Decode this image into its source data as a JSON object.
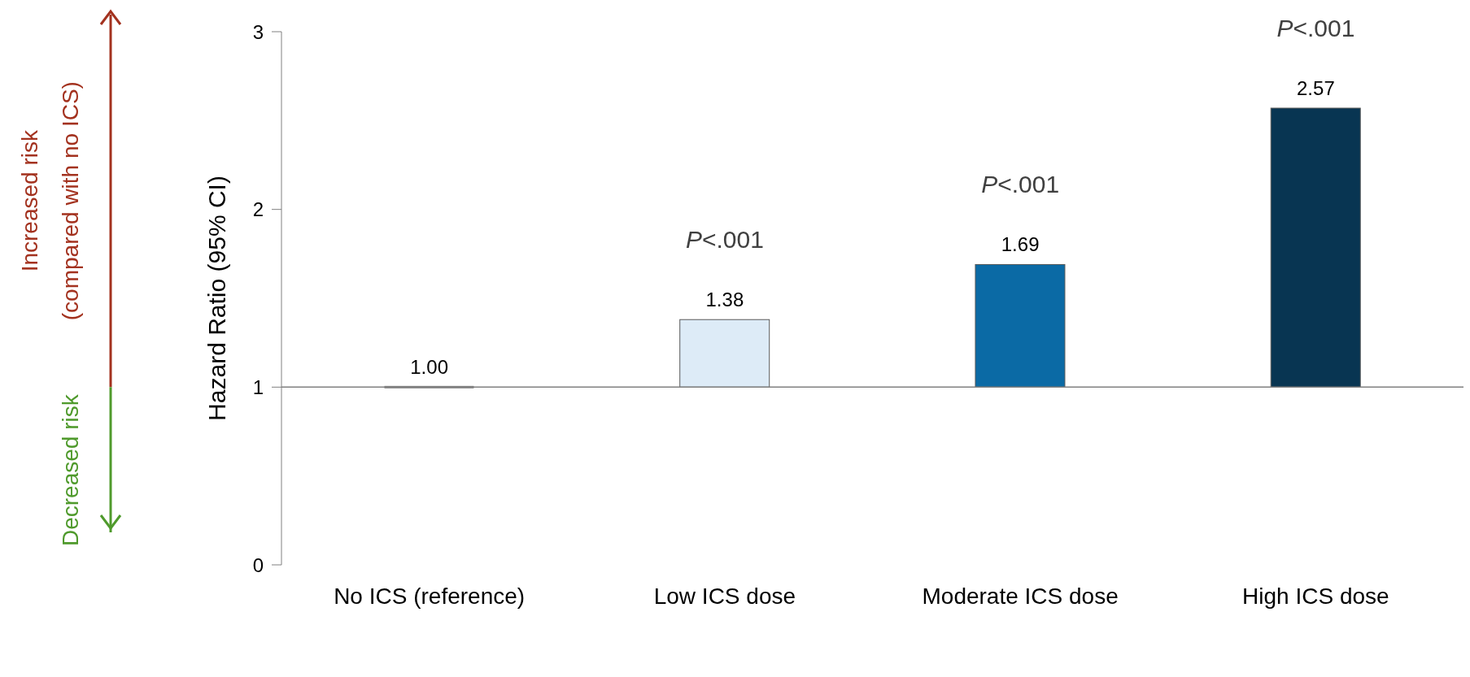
{
  "chart_data": {
    "type": "bar",
    "ylabel": "Hazard Ratio (95% CI)",
    "categories": [
      "No ICS (reference)",
      "Low ICS dose",
      "Moderate ICS dose",
      "High ICS dose"
    ],
    "base": [
      1,
      1,
      1,
      1
    ],
    "values": [
      0,
      0.38,
      0.69,
      1.57
    ],
    "value_labels": [
      "1.00",
      "1.38",
      "1.69",
      "2.57"
    ],
    "colors": [
      "#808080",
      "#ddebf7",
      "#0b6aa5",
      "#083552"
    ],
    "ylim": [
      0,
      3
    ],
    "yticks": [
      0,
      1,
      2,
      3
    ],
    "grid": false,
    "legend": false,
    "ref_lines": [
      {
        "axis": "y",
        "value": 1,
        "color": "#808080"
      }
    ],
    "annotations": [
      "Increased risk\n(compared with no ICS)",
      "Decreased risk",
      "P<.001",
      "P<.001",
      "P<.001"
    ]
  }
}
